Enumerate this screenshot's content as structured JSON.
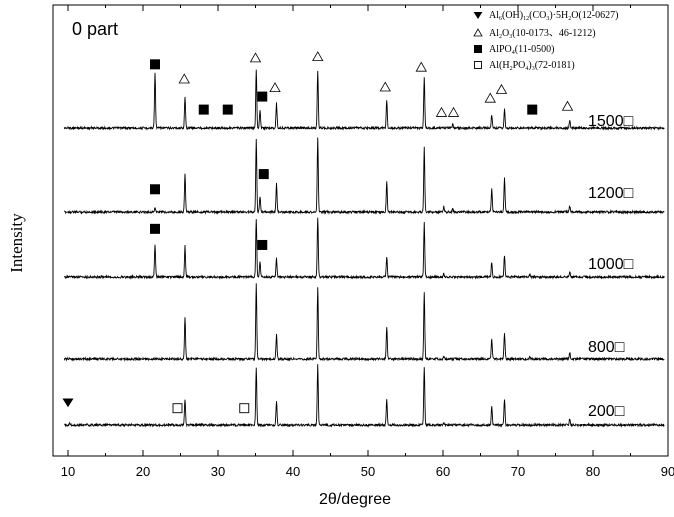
{
  "chart_data": {
    "type": "line",
    "panel_label": "0 part",
    "xlabel": "2θ/degree",
    "ylabel": "Intensity",
    "xlim": [
      8,
      90
    ],
    "xticks": [
      10,
      20,
      30,
      40,
      50,
      60,
      70,
      80,
      90
    ],
    "grid": false,
    "legend": {
      "placement": "top-right",
      "entries": [
        {
          "marker": "filled-down-triangle",
          "parts": [
            [
              "Al",
              "n"
            ],
            [
              "6",
              "sub"
            ],
            [
              "(OH)",
              "n"
            ],
            [
              "12",
              "sub"
            ],
            [
              "(CO",
              "n"
            ],
            [
              "3",
              "sub"
            ],
            [
              ")·5H",
              "n"
            ],
            [
              "2",
              "sub"
            ],
            [
              "O(12-0627)",
              "n"
            ]
          ]
        },
        {
          "marker": "open-triangle",
          "parts": [
            [
              "Al",
              "n"
            ],
            [
              "2",
              "sub"
            ],
            [
              "O",
              "n"
            ],
            [
              "3",
              "sub"
            ],
            [
              "(10-0173、46-1212)",
              "n"
            ]
          ]
        },
        {
          "marker": "filled-square",
          "parts": [
            [
              "AlPO",
              "n"
            ],
            [
              "4",
              "sub"
            ],
            [
              "(11-0500)",
              "n"
            ]
          ]
        },
        {
          "marker": "open-square",
          "parts": [
            [
              "Al(H",
              "n"
            ],
            [
              "2",
              "sub"
            ],
            [
              "PO",
              "n"
            ],
            [
              "4",
              "sub"
            ],
            [
              ")",
              "n"
            ],
            [
              "3",
              "sub"
            ],
            [
              "(72-0181)",
              "n"
            ]
          ]
        }
      ]
    },
    "series": [
      {
        "name": "1500□",
        "peaks": [
          [
            21.6,
            0.9
          ],
          [
            25.6,
            0.5
          ],
          [
            35.1,
            0.95
          ],
          [
            35.6,
            0.3
          ],
          [
            37.8,
            0.4
          ],
          [
            43.3,
            0.93
          ],
          [
            52.5,
            0.45
          ],
          [
            57.5,
            0.83
          ],
          [
            61.3,
            0.06
          ],
          [
            66.5,
            0.22
          ],
          [
            68.2,
            0.3
          ],
          [
            76.9,
            0.12
          ]
        ],
        "markers": [
          {
            "type": "filled-square",
            "x": 21.6,
            "level": 0.93
          },
          {
            "type": "open-triangle",
            "x": 25.5,
            "level": 0.69
          },
          {
            "type": "filled-square",
            "x": 28.1,
            "level": 0.2
          },
          {
            "type": "filled-square",
            "x": 31.3,
            "level": 0.2
          },
          {
            "type": "open-triangle",
            "x": 35.0,
            "level": 1.03
          },
          {
            "type": "filled-square",
            "x": 35.9,
            "level": 0.41
          },
          {
            "type": "open-triangle",
            "x": 37.6,
            "level": 0.55
          },
          {
            "type": "open-triangle",
            "x": 43.3,
            "level": 1.05
          },
          {
            "type": "open-triangle",
            "x": 52.3,
            "level": 0.56
          },
          {
            "type": "open-triangle",
            "x": 57.1,
            "level": 0.88
          },
          {
            "type": "open-triangle",
            "x": 59.8,
            "level": 0.15
          },
          {
            "type": "open-triangle",
            "x": 61.4,
            "level": 0.15
          },
          {
            "type": "open-triangle",
            "x": 66.3,
            "level": 0.38
          },
          {
            "type": "open-triangle",
            "x": 67.8,
            "level": 0.52
          },
          {
            "type": "filled-square",
            "x": 71.9,
            "level": 0.2
          },
          {
            "type": "open-triangle",
            "x": 76.6,
            "level": 0.25
          }
        ]
      },
      {
        "name": "1200□",
        "peaks": [
          [
            21.6,
            0.06
          ],
          [
            25.6,
            0.5
          ],
          [
            35.1,
            0.95
          ],
          [
            35.6,
            0.2
          ],
          [
            37.8,
            0.37
          ],
          [
            43.3,
            0.97
          ],
          [
            52.5,
            0.39
          ],
          [
            57.5,
            0.85
          ],
          [
            60.1,
            0.07
          ],
          [
            61.3,
            0.05
          ],
          [
            66.5,
            0.3
          ],
          [
            68.2,
            0.45
          ],
          [
            76.9,
            0.08
          ]
        ],
        "markers": [
          {
            "type": "filled-square",
            "x": 21.6,
            "level": 0.22
          },
          {
            "type": "filled-square",
            "x": 36.1,
            "level": 0.42
          }
        ]
      },
      {
        "name": "1000□",
        "peaks": [
          [
            21.6,
            0.52
          ],
          [
            25.6,
            0.5
          ],
          [
            35.1,
            0.95
          ],
          [
            35.6,
            0.25
          ],
          [
            37.8,
            0.3
          ],
          [
            43.3,
            0.97
          ],
          [
            52.5,
            0.33
          ],
          [
            57.5,
            0.87
          ],
          [
            60.1,
            0.05
          ],
          [
            66.5,
            0.25
          ],
          [
            68.2,
            0.35
          ],
          [
            71.6,
            0.05
          ],
          [
            76.9,
            0.08
          ]
        ],
        "markers": [
          {
            "type": "filled-square",
            "x": 21.6,
            "level": 0.68
          },
          {
            "type": "filled-square",
            "x": 35.9,
            "level": 0.42
          }
        ]
      },
      {
        "name": "800□",
        "peaks": [
          [
            25.6,
            0.58
          ],
          [
            35.1,
            1.05
          ],
          [
            37.8,
            0.34
          ],
          [
            43.3,
            1.0
          ],
          [
            52.5,
            0.45
          ],
          [
            57.5,
            0.92
          ],
          [
            60.1,
            0.04
          ],
          [
            66.5,
            0.27
          ],
          [
            68.2,
            0.37
          ],
          [
            71.6,
            0.04
          ],
          [
            76.9,
            0.09
          ]
        ],
        "markers": []
      },
      {
        "name": "200□",
        "peaks": [
          [
            10.2,
            0.03
          ],
          [
            25.6,
            0.42
          ],
          [
            35.1,
            0.95
          ],
          [
            37.8,
            0.4
          ],
          [
            43.3,
            1.0
          ],
          [
            52.5,
            0.42
          ],
          [
            57.5,
            0.97
          ],
          [
            60.1,
            0.04
          ],
          [
            66.5,
            0.31
          ],
          [
            68.2,
            0.44
          ],
          [
            76.9,
            0.1
          ]
        ],
        "markers": [
          {
            "type": "filled-down-triangle",
            "x": 10.0,
            "level": 0.28
          },
          {
            "type": "open-square",
            "x": 24.6,
            "level": 0.18
          },
          {
            "type": "open-square",
            "x": 33.5,
            "level": 0.18
          }
        ]
      }
    ]
  }
}
